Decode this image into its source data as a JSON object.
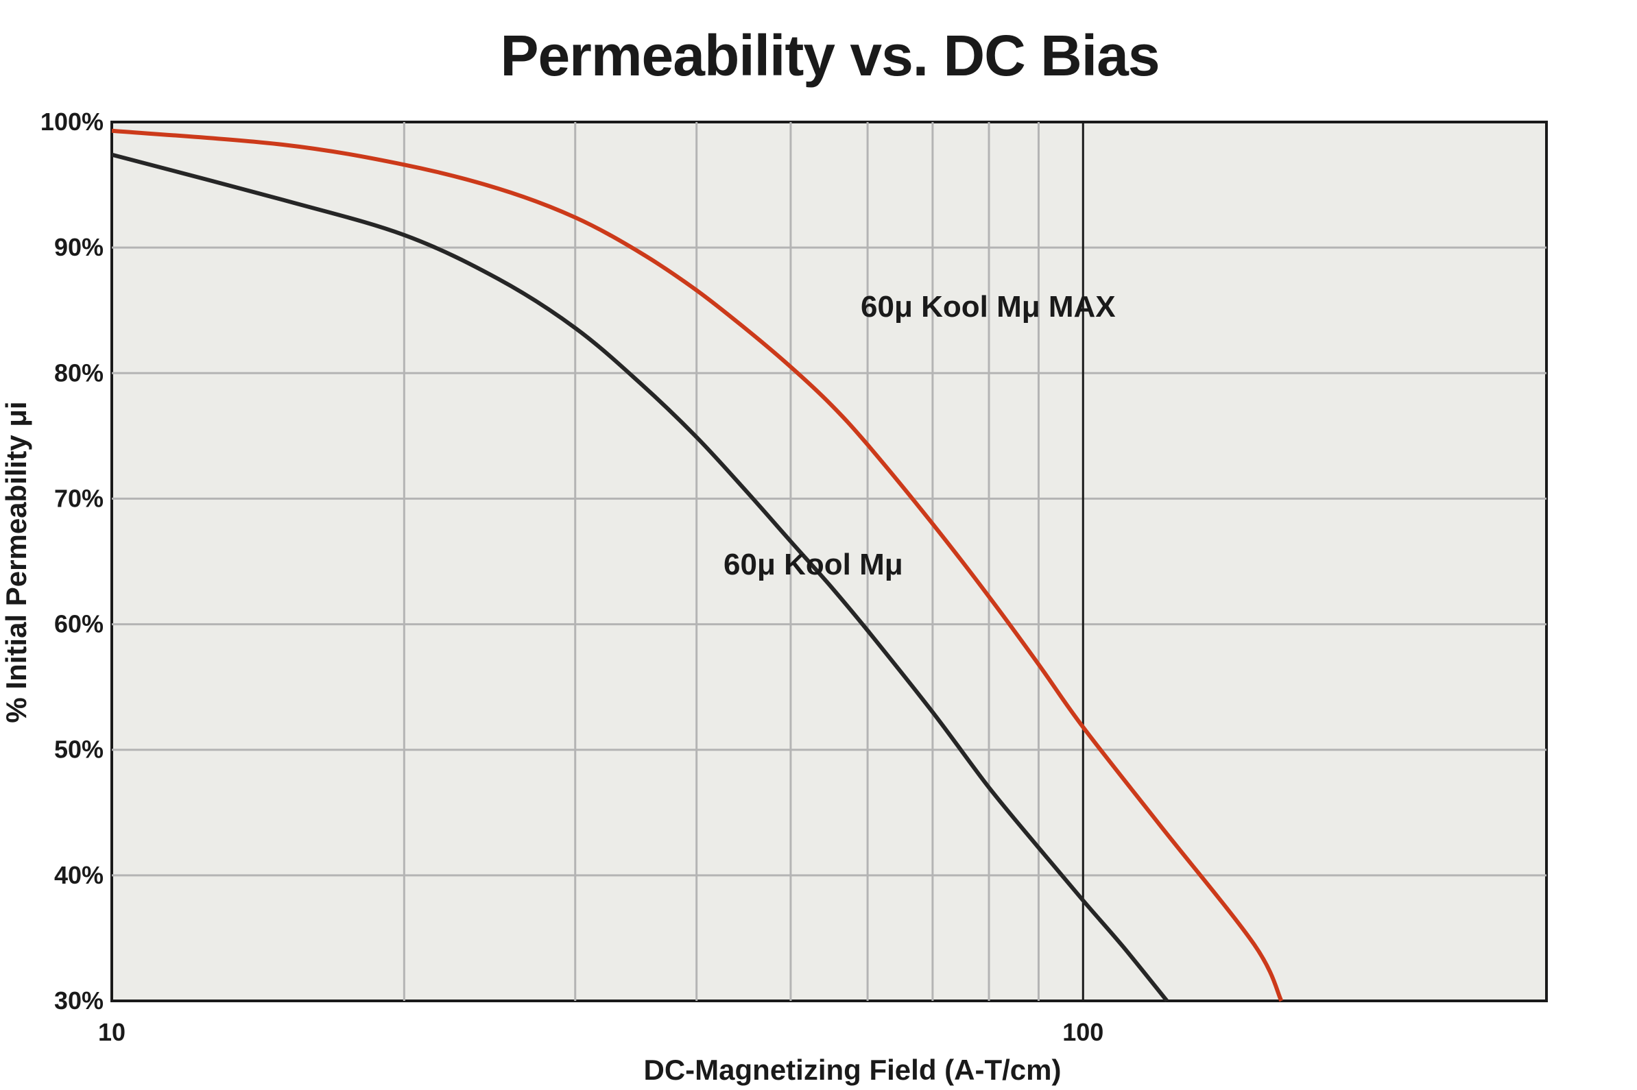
{
  "chart_data": {
    "type": "line",
    "title": "Permeability vs. DC Bias",
    "xlabel": "DC-Magnetizing Field (A-T/cm)",
    "ylabel": "% Initial Permeability μi",
    "x_scale": "log",
    "xlim": [
      10,
      300
    ],
    "ylim": [
      30,
      100
    ],
    "x_tick_labels": [
      "10",
      "100"
    ],
    "x_ticks": [
      10,
      100
    ],
    "x_minor_gridlines": [
      20,
      30,
      40,
      50,
      60,
      70,
      80,
      90,
      100
    ],
    "y_ticks": [
      30,
      40,
      50,
      60,
      70,
      80,
      90,
      100
    ],
    "y_tick_labels": [
      "30%",
      "40%",
      "50%",
      "60%",
      "70%",
      "80%",
      "90%",
      "100%"
    ],
    "grid": true,
    "series": [
      {
        "name": "60μ Kool Mμ MAX",
        "color": "#cc3a1a",
        "x": [
          10,
          15,
          20,
          25,
          30,
          35,
          40,
          45,
          50,
          55,
          60,
          70,
          80,
          90,
          100,
          120,
          150,
          160
        ],
        "y": [
          99.3,
          98.2,
          96.6,
          94.7,
          92.4,
          89.6,
          86.6,
          83.5,
          80.5,
          77.5,
          74.3,
          68.0,
          62.2,
          56.8,
          51.8,
          44.0,
          34.5,
          30.0
        ]
      },
      {
        "name": "60μ Kool Mμ",
        "color": "#262626",
        "x": [
          10,
          15,
          20,
          25,
          30,
          35,
          40,
          45,
          50,
          55,
          60,
          70,
          80,
          90,
          100,
          110,
          122
        ],
        "y": [
          97.4,
          93.8,
          91.0,
          87.5,
          83.6,
          79.2,
          74.9,
          70.6,
          66.6,
          63.0,
          59.5,
          53.0,
          47.0,
          42.2,
          38.0,
          34.3,
          30.0
        ]
      }
    ]
  }
}
